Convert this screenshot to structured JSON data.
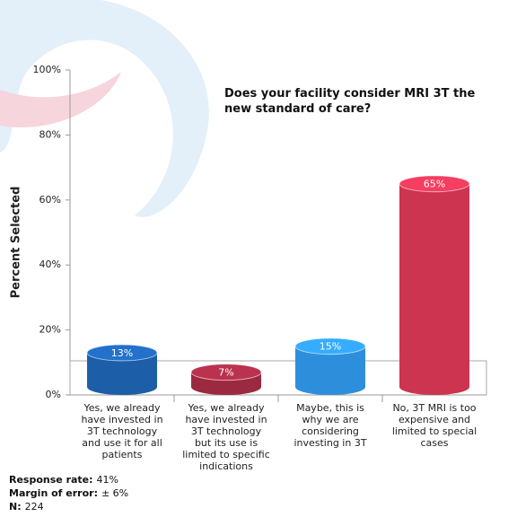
{
  "chart_data": {
    "type": "bar",
    "title": "Does your facility  consider MRI 3T the\nnew standard of care?",
    "y_label": "Percent Selected",
    "categories": [
      "Yes, we already\nhave invested in\n3T technology\nand use it for all\npatients",
      "Yes, we already\nhave invested in\n3T technology\nbut its use is\nlimited to specific\nindications",
      "Maybe, this is\nwhy we are\nconsidering\ninvesting in 3T",
      "No, 3T MRI is too\nexpensive and\nlimited to special\ncases"
    ],
    "values": [
      13,
      7,
      15,
      65
    ],
    "value_labels": [
      "13%",
      "7%",
      "15%",
      "65%"
    ],
    "colors": [
      "#1d5ea8",
      "#9b2a40",
      "#2d8fdc",
      "#cc3450"
    ],
    "ylim": [
      0,
      100
    ],
    "yticks": [
      {
        "value": 0,
        "label": "0%"
      },
      {
        "value": 20,
        "label": "20%"
      },
      {
        "value": 40,
        "label": "40%"
      },
      {
        "value": 60,
        "label": "60%"
      },
      {
        "value": 80,
        "label": "80%"
      },
      {
        "value": 100,
        "label": "100%"
      }
    ],
    "notes": [
      {
        "label": "Response rate:",
        "value": "41%"
      },
      {
        "label": "Margin of error:",
        "value": "± 6%"
      },
      {
        "label": "N:",
        "value": "224"
      }
    ]
  }
}
